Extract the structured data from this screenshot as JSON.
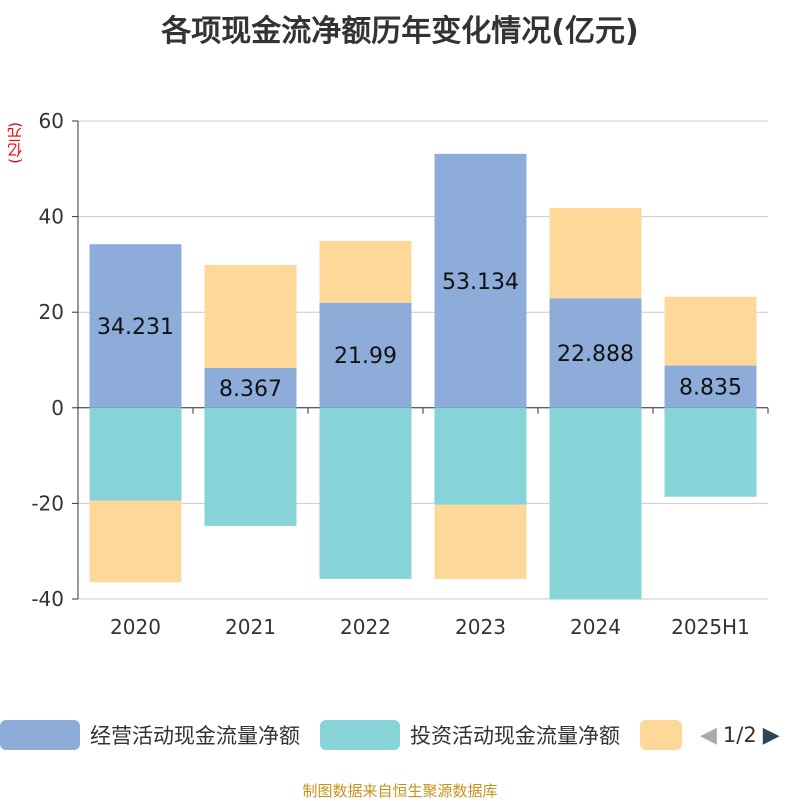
{
  "chart_data": {
    "type": "bar",
    "stacked": true,
    "title": "各项现金流净额历年变化情况(亿元)",
    "ylabel": "(亿元)",
    "ylim": [
      -40,
      60
    ],
    "yticks": [
      -40,
      -20,
      0,
      20,
      40,
      60
    ],
    "grid": true,
    "categories": [
      "2020",
      "2021",
      "2022",
      "2023",
      "2024",
      "2025H1"
    ],
    "series": [
      {
        "name": "经营活动现金流量净额",
        "color": "#8eacd9",
        "values": [
          34.231,
          8.367,
          21.99,
          53.134,
          22.888,
          8.835
        ],
        "labels": [
          "34.231",
          "8.367",
          "21.99",
          "53.134",
          "22.888",
          "8.835"
        ]
      },
      {
        "name": "投资活动现金流量净额",
        "color": "#86d4d7",
        "values": [
          -19.4,
          -24.7,
          -35.8,
          -20.3,
          -40.1,
          -18.6
        ]
      },
      {
        "name": "",
        "color": "#fed898",
        "values": [
          -17.1,
          21.5,
          12.9,
          -15.5,
          18.9,
          14.4
        ]
      }
    ],
    "legend_position": "bottom",
    "legend_page": "1/2"
  },
  "source": "制图数据来自恒生聚源数据库"
}
